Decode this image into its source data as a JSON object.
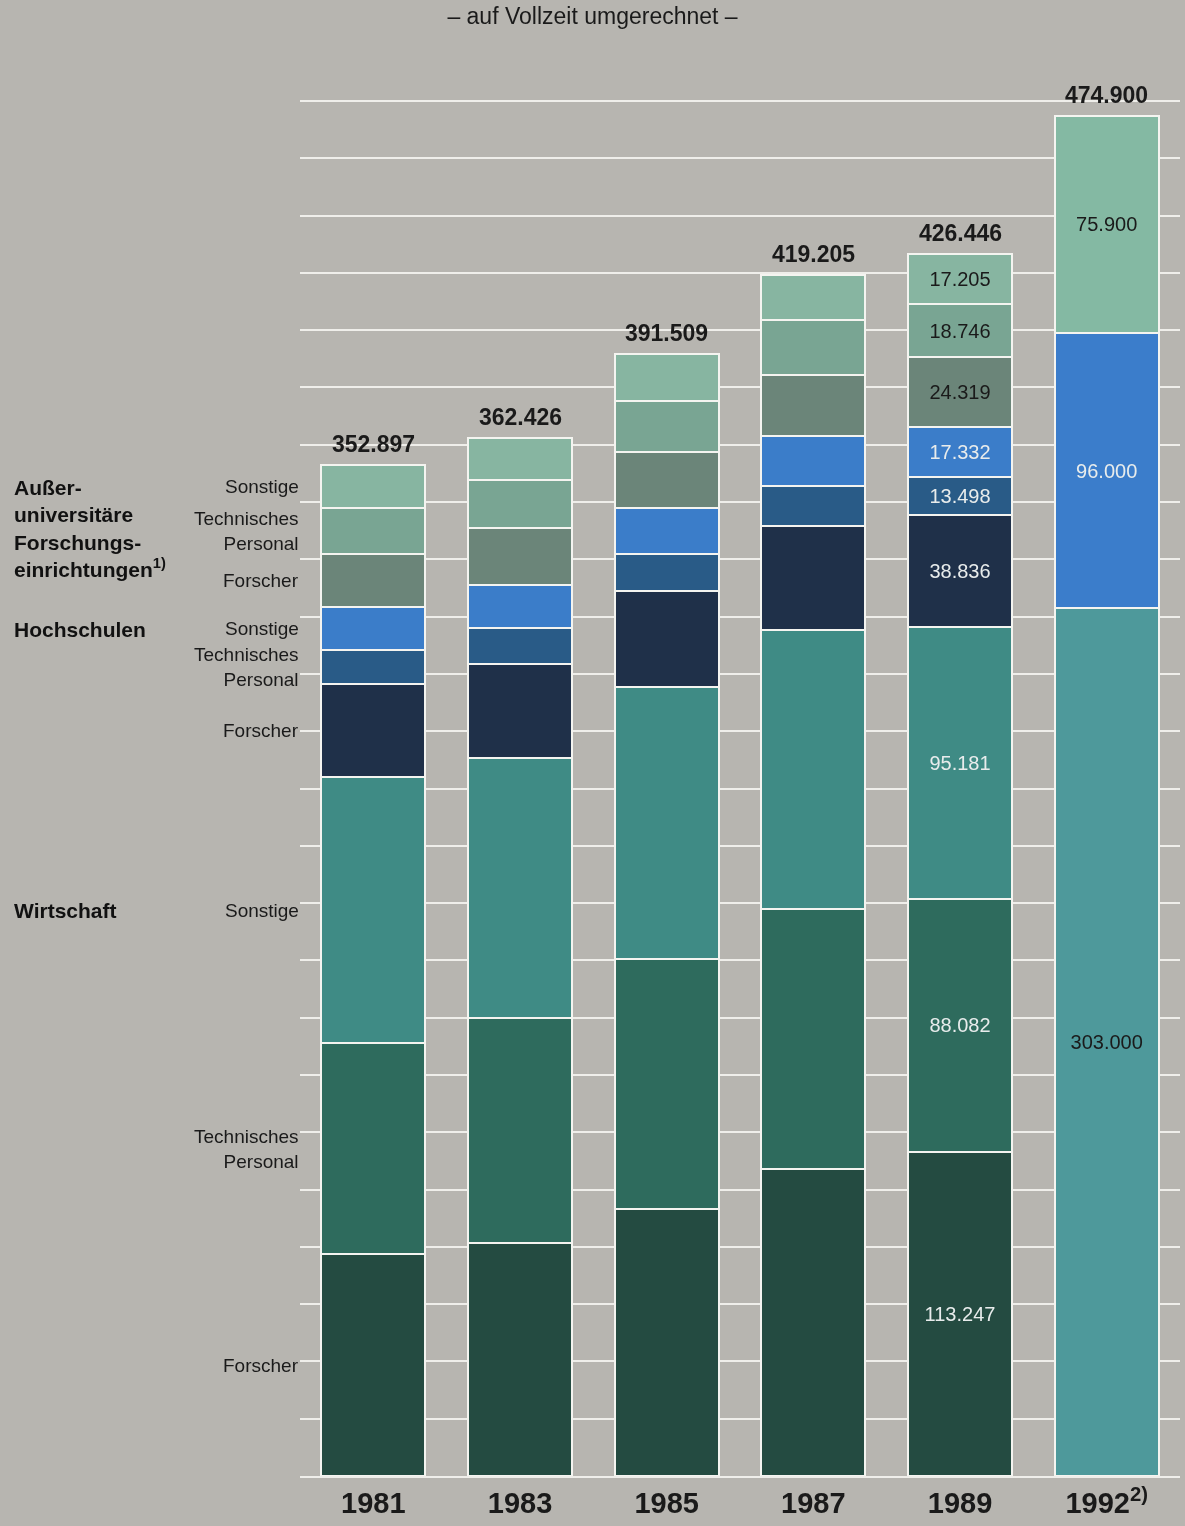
{
  "chart_data": {
    "type": "bar",
    "stacked": true,
    "title": "– auf Vollzeit umgerechnet –",
    "categories": [
      "1981",
      "1983",
      "1985",
      "1987",
      "1989",
      "1992$^{2)}$"
    ],
    "series": [
      {
        "name": "Forscher",
        "color": "#244b41",
        "values": [
          77500,
          81400,
          93300,
          107100,
          113247,
          null
        ],
        "value_labels": [
          null,
          null,
          null,
          null,
          "113.247",
          null
        ]
      },
      {
        "name": "Technisches\nPersonal",
        "color": "#2e6b5d",
        "values": [
          73500,
          78400,
          87200,
          90800,
          88082,
          null
        ],
        "value_labels": [
          null,
          null,
          null,
          null,
          "88.082",
          null
        ]
      },
      {
        "name": "Sonstige",
        "color": "#3f8b85",
        "values": [
          92897,
          90826,
          94809,
          97505,
          95181,
          null
        ],
        "value_labels": [
          null,
          null,
          null,
          null,
          "95.181",
          null
        ]
      },
      {
        "name": "Forscher",
        "color": "#1f3049",
        "values": [
          32600,
          32800,
          33700,
          36400,
          38836,
          null
        ],
        "value_labels": [
          null,
          null,
          null,
          null,
          "38.836",
          null
        ]
      },
      {
        "name": "Technisches\nPersonal",
        "color": "#295b87",
        "values": [
          11700,
          12700,
          12900,
          13900,
          13498,
          null
        ],
        "value_labels": [
          null,
          null,
          null,
          null,
          "13.498",
          null
        ]
      },
      {
        "name": "Sonstige",
        "color": "#3b7dc9",
        "values": [
          15000,
          14900,
          16000,
          17300,
          17332,
          null
        ],
        "value_labels": [
          null,
          null,
          null,
          null,
          "17.332",
          null
        ]
      },
      {
        "name": "Forscher",
        "color": "#6b8579",
        "values": [
          18700,
          19900,
          19700,
          21500,
          24319,
          null
        ],
        "value_labels": [
          null,
          null,
          null,
          null,
          "24.319",
          null
        ]
      },
      {
        "name": "Technisches\nPersonal",
        "color": "#79a593",
        "values": [
          16000,
          16800,
          17800,
          18900,
          18746,
          null
        ],
        "value_labels": [
          null,
          null,
          null,
          null,
          "18.746",
          null
        ]
      },
      {
        "name": "Sonstige",
        "color": "#87b5a1",
        "values": [
          15000,
          14700,
          16100,
          15800,
          17205,
          null
        ],
        "value_labels": [
          null,
          null,
          null,
          null,
          "17.205",
          null
        ]
      },
      {
        "color": "#4e999b",
        "values": [
          null,
          null,
          null,
          null,
          null,
          303000
        ],
        "value_labels": [
          null,
          null,
          null,
          null,
          null,
          "303.000"
        ]
      },
      {
        "color": "#3b7dcb",
        "values": [
          null,
          null,
          null,
          null,
          null,
          96000
        ],
        "value_labels": [
          null,
          null,
          null,
          null,
          null,
          "96.000"
        ]
      },
      {
        "color": "#84b9a3",
        "values": [
          null,
          null,
          null,
          null,
          null,
          75900
        ],
        "value_labels": [
          null,
          null,
          null,
          null,
          null,
          "75.900"
        ]
      }
    ],
    "totals": [
      "352.897",
      "362.426",
      "391.509",
      "419.205",
      "426.446",
      "474.900"
    ],
    "annotations": [
      "Außer-\nuniversitäre\nForschungs-\neinrichtungen$^{1)}$",
      "Hochschulen",
      "Wirtschaft"
    ],
    "grid": "y",
    "tick_labels": "x"
  }
}
